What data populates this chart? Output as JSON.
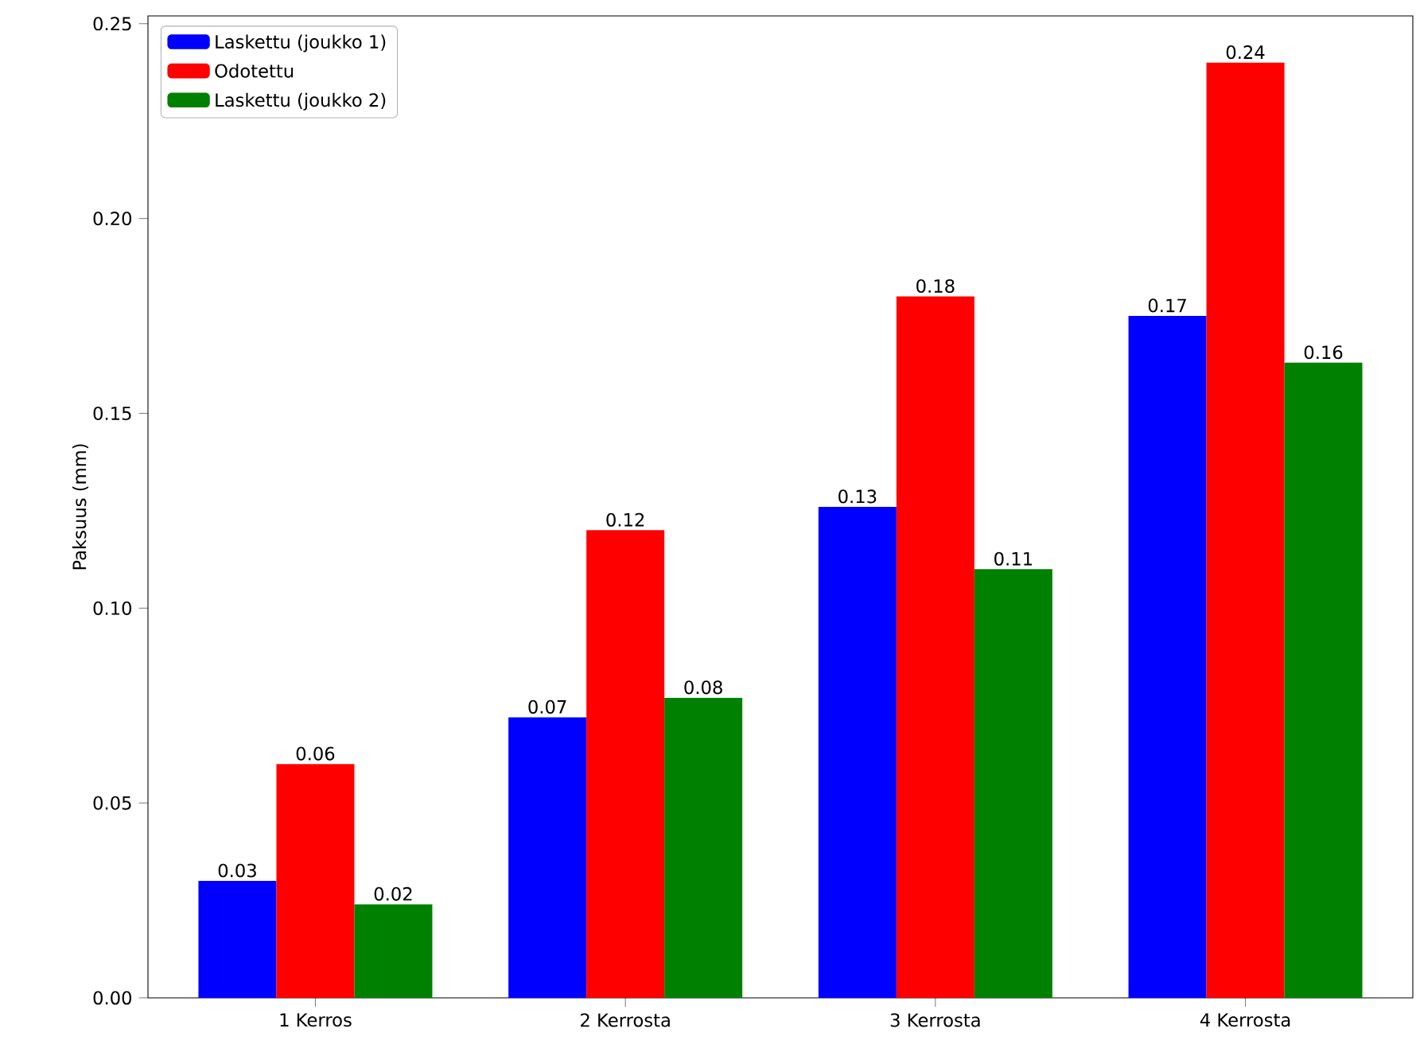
{
  "chart_data": {
    "type": "bar",
    "ylabel": "Paksuus (mm)",
    "categories": [
      "1 Kerros",
      "2 Kerrosta",
      "3 Kerrosta",
      "4 Kerrosta"
    ],
    "series": [
      {
        "name": "Laskettu (joukko 1)",
        "color": "#0000ff",
        "values": [
          0.03,
          0.072,
          0.126,
          0.175
        ],
        "value_labels": [
          "0.03",
          "0.07",
          "0.13",
          "0.17"
        ]
      },
      {
        "name": "Odotettu",
        "color": "#ff0000",
        "values": [
          0.06,
          0.12,
          0.18,
          0.24
        ],
        "value_labels": [
          "0.06",
          "0.12",
          "0.18",
          "0.24"
        ]
      },
      {
        "name": "Laskettu (joukko 2)",
        "color": "#008000",
        "values": [
          0.024,
          0.077,
          0.11,
          0.163
        ],
        "value_labels": [
          "0.02",
          "0.08",
          "0.11",
          "0.16"
        ]
      }
    ],
    "ylim": [
      0,
      0.252
    ],
    "yticks": [
      {
        "value": 0,
        "label": "0.00"
      },
      {
        "value": 0.05,
        "label": "0.05"
      },
      {
        "value": 0.1,
        "label": "0.10"
      },
      {
        "value": 0.15,
        "label": "0.15"
      },
      {
        "value": 0.2,
        "label": "0.20"
      },
      {
        "value": 0.25,
        "label": "0.25"
      }
    ],
    "legend": "top left",
    "grid": false
  }
}
